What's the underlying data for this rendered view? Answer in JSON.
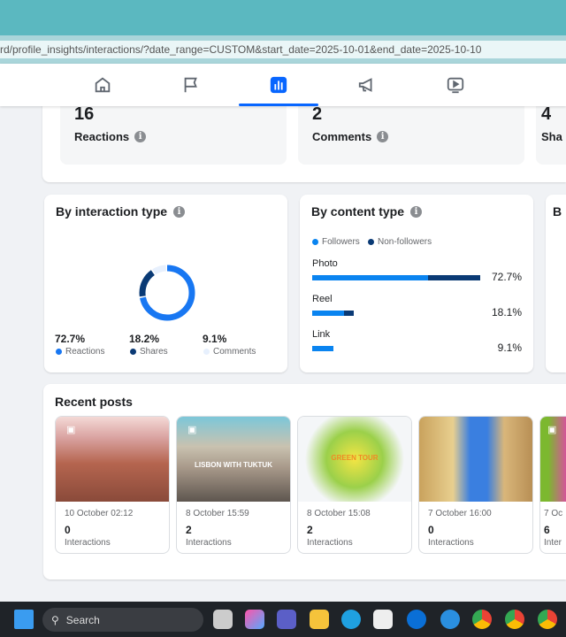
{
  "browser": {
    "url": "rd/profile_insights/interactions/?date_range=CUSTOM&start_date=2025-10-01&end_date=2025-10-10"
  },
  "nav": {
    "tabs": [
      {
        "icon": "home-icon"
      },
      {
        "icon": "flag-icon"
      },
      {
        "icon": "insights-icon",
        "active": true
      },
      {
        "icon": "megaphone-icon"
      },
      {
        "icon": "video-icon"
      }
    ]
  },
  "stats": [
    {
      "value": "16",
      "label": "Reactions"
    },
    {
      "value": "2",
      "label": "Comments"
    },
    {
      "value": "4",
      "label": "Sha"
    }
  ],
  "interaction_type": {
    "title": "By interaction type",
    "items": [
      {
        "pct": "72.7%",
        "label": "Reactions",
        "value": 72.7,
        "color": "#1877f2"
      },
      {
        "pct": "18.2%",
        "label": "Shares",
        "value": 18.2,
        "color": "#0a3a75"
      },
      {
        "pct": "9.1%",
        "label": "Comments",
        "value": 9.1,
        "color": "#e7f0fd"
      }
    ]
  },
  "content_type": {
    "title": "By content type",
    "legend": {
      "followers": "Followers",
      "non_followers": "Non-followers",
      "followers_color": "#0a84f0",
      "non_followers_color": "#0a3a75"
    },
    "rows": [
      {
        "label": "Photo",
        "pct": "72.7%",
        "followers": 50,
        "non_followers": 22.7
      },
      {
        "label": "Reel",
        "pct": "18.1%",
        "followers": 13.6,
        "non_followers": 4.5
      },
      {
        "label": "Link",
        "pct": "9.1%",
        "followers": 9.1,
        "non_followers": 0
      }
    ]
  },
  "third_card": {
    "title": "B"
  },
  "recent_posts": {
    "title": "Recent posts",
    "posts": [
      {
        "date": "10 October 02:12",
        "count": "0",
        "label": "Interactions",
        "icon": "link-icon"
      },
      {
        "date": "8 October 15:59",
        "count": "2",
        "label": "Interactions",
        "icon": "reel-icon",
        "overlay": "LISBON WITH TUKTUK"
      },
      {
        "date": "8 October 15:08",
        "count": "2",
        "label": "Interactions",
        "overlay": "GREEN TOUR"
      },
      {
        "date": "7 October 16:00",
        "count": "0",
        "label": "Interactions"
      },
      {
        "date": "7 Oc",
        "count": "6",
        "label": "Inter",
        "icon": "photo-icon"
      }
    ]
  },
  "taskbar": {
    "search": "Search"
  }
}
